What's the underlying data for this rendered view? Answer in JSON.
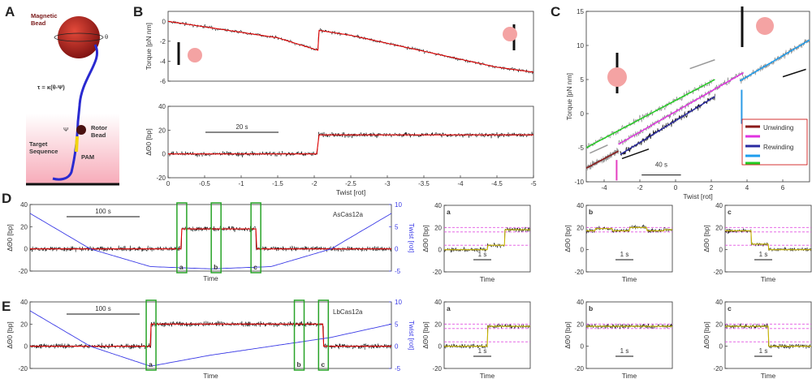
{
  "colors": {
    "trace": "#111111",
    "filtered": "#e00000",
    "twist_axis": "#3a3ae6",
    "box": "#27a327",
    "threshold": "#e255e2",
    "step_fit": "#c8b400",
    "unwinding": "#8b1a1a",
    "unwinding2": "#e033e0",
    "rewinding": "#2a2aa0",
    "rewinding2": "#1e9dee",
    "rewinding3": "#22cc22",
    "arrow_gray": "#999999",
    "arrow_magenta": "#e43fc0",
    "arrow_blue": "#2d9be6"
  },
  "panel_labels": [
    "A",
    "B",
    "C",
    "D",
    "E"
  ],
  "panelA": {
    "bead_label": "Magnetic\nBead",
    "theta": "θ",
    "tau_eq": "τ = κ(θ-Ψ)",
    "psi": "Ψ",
    "rotor_label": "Rotor\nBead",
    "target_label": "Target\nSequence",
    "pam_label": "PAM"
  },
  "chart_data": [
    {
      "id": "B-top",
      "type": "line",
      "ylabel": "Torque [pN nm]",
      "xlim": [
        0,
        -5
      ],
      "ylim": [
        -6,
        1
      ],
      "yticks": [
        0,
        -2,
        -4,
        -6
      ],
      "x": [
        0,
        -0.5,
        -1,
        -1.5,
        -2.05,
        -2.06,
        -2.5,
        -3,
        -3.5,
        -4,
        -4.5,
        -5
      ],
      "series": [
        {
          "values": [
            0,
            -0.55,
            -1.1,
            -1.65,
            -2.9,
            -0.9,
            -1.4,
            -2.2,
            -3.0,
            -3.8,
            -4.6,
            -5.1
          ]
        }
      ]
    },
    {
      "id": "B-bottom",
      "type": "line",
      "xlabel": "Twist [rot]",
      "ylabel": "ΔΘ0 [bp]",
      "xlim": [
        0,
        -5
      ],
      "ylim": [
        -20,
        40
      ],
      "xticks": [
        0,
        -0.5,
        -1,
        -1.5,
        -2,
        -2.5,
        -3,
        -3.5,
        -4,
        -4.5,
        -5
      ],
      "xticklabels": [
        "0",
        "-0.5",
        "-1",
        "-1.5",
        "-2",
        "-2.5",
        "-3",
        "-3.5",
        "-4",
        "-4.5",
        "-5"
      ],
      "yticks": [
        -20,
        0,
        20,
        40
      ],
      "scalebar": "20 s",
      "x": [
        0,
        -2.04,
        -2.06,
        -5
      ],
      "series": [
        {
          "values": [
            0,
            0,
            16,
            16
          ]
        }
      ]
    },
    {
      "id": "C",
      "type": "line",
      "xlabel": "Twist [rot]",
      "ylabel": "Torque [pN nm]",
      "xlim": [
        -5,
        7.5
      ],
      "ylim": [
        -10,
        15
      ],
      "xticks": [
        -4,
        -2,
        0,
        2,
        4,
        6
      ],
      "yticks": [
        -10,
        -5,
        0,
        5,
        10,
        15
      ],
      "scalebar": "40 s",
      "legend": {
        "position": "right",
        "entries": [
          "Unwinding",
          "Rewinding"
        ]
      },
      "series": [
        {
          "x": [
            -5,
            -3.2
          ],
          "values": [
            -8,
            -5.5
          ]
        },
        {
          "x": [
            -3.2,
            3.8
          ],
          "values": [
            -4.5,
            6
          ]
        },
        {
          "x": [
            -3.1,
            2.2
          ],
          "values": [
            -6,
            2.5
          ]
        },
        {
          "x": [
            3.6,
            7.5
          ],
          "values": [
            4.8,
            10.8
          ]
        },
        {
          "x": [
            -5,
            2.2
          ],
          "values": [
            -5,
            5
          ]
        }
      ]
    },
    {
      "id": "D-main",
      "type": "line",
      "xlabel": "Time",
      "ylabel": "ΔΘ0 [bp]",
      "y2label": "Twist [rot]",
      "ylim": [
        -20,
        40
      ],
      "y2lim": [
        -5,
        10
      ],
      "yticks": [
        -20,
        0,
        20,
        40
      ],
      "y2ticks": [
        -5,
        0,
        5,
        10
      ],
      "scalebar": "100 s",
      "annotation": "AsCas12a",
      "box_labels": [
        "a",
        "b",
        "c"
      ],
      "series": [
        {
          "name": "ΔΘ0",
          "values": [
            0,
            0,
            18,
            22,
            18,
            0,
            0
          ]
        },
        {
          "name": "Twist",
          "values": [
            8,
            0,
            -4,
            -4.5,
            -4,
            0,
            8
          ]
        }
      ]
    },
    {
      "id": "E-main",
      "type": "line",
      "xlabel": "Time",
      "ylabel": "ΔΘ0 [bp]",
      "y2label": "Twist [rot]",
      "ylim": [
        -20,
        40
      ],
      "y2lim": [
        -5,
        10
      ],
      "yticks": [
        -20,
        0,
        20,
        40
      ],
      "y2ticks": [
        -5,
        0,
        5,
        10
      ],
      "scalebar": "100 s",
      "annotation": "LbCas12a",
      "box_labels": [
        "a",
        "b",
        "c"
      ],
      "series": [
        {
          "name": "ΔΘ0",
          "values": [
            0,
            0,
            20,
            20,
            18,
            0,
            0
          ]
        },
        {
          "name": "Twist",
          "values": [
            8,
            0,
            -4.5,
            -2,
            0,
            2,
            5
          ]
        }
      ]
    },
    {
      "id": "D-a",
      "type": "line",
      "label": "a",
      "xlabel": "Time",
      "ylabel": "ΔΘ0 [bp]",
      "ylim": [
        -20,
        40
      ],
      "yticks": [
        -20,
        0,
        20,
        40
      ],
      "scalebar": "1 s",
      "thresholds": [
        4,
        16,
        20
      ],
      "series": [
        {
          "values": [
            0,
            0,
            0,
            4,
            18,
            18
          ]
        }
      ]
    },
    {
      "id": "D-b",
      "type": "line",
      "label": "b",
      "xlabel": "Time",
      "ylabel": "ΔΘ0 [bp]",
      "ylim": [
        -20,
        40
      ],
      "yticks": [
        -20,
        0,
        20,
        40
      ],
      "scalebar": "1 s",
      "thresholds": [
        16,
        20
      ],
      "series": [
        {
          "values": [
            17,
            19,
            17,
            20,
            17,
            18
          ]
        }
      ]
    },
    {
      "id": "D-c",
      "type": "line",
      "label": "c",
      "xlabel": "Time",
      "ylabel": "ΔΘ0 [bp]",
      "ylim": [
        -20,
        40
      ],
      "yticks": [
        -20,
        0,
        20,
        40
      ],
      "scalebar": "1 s",
      "thresholds": [
        4,
        16,
        20
      ],
      "series": [
        {
          "values": [
            17,
            17,
            5,
            0,
            0,
            0
          ]
        }
      ]
    },
    {
      "id": "E-a",
      "type": "line",
      "label": "a",
      "xlabel": "Time",
      "ylabel": "ΔΘ0 [bp]",
      "ylim": [
        -20,
        40
      ],
      "yticks": [
        -20,
        0,
        20,
        40
      ],
      "scalebar": "1 s",
      "thresholds": [
        4,
        16,
        20
      ],
      "series": [
        {
          "values": [
            0,
            0,
            0,
            18,
            18,
            18
          ]
        }
      ]
    },
    {
      "id": "E-b",
      "type": "line",
      "label": "b",
      "xlabel": "Time",
      "ylabel": "ΔΘ0 [bp]",
      "ylim": [
        -20,
        40
      ],
      "yticks": [
        -20,
        0,
        20,
        40
      ],
      "scalebar": "1 s",
      "thresholds": [
        16,
        20
      ],
      "series": [
        {
          "values": [
            18,
            18,
            18,
            18,
            18,
            18
          ]
        }
      ]
    },
    {
      "id": "E-c",
      "type": "line",
      "label": "c",
      "xlabel": "Time",
      "ylabel": "ΔΘ0 [bp]",
      "ylim": [
        -20,
        40
      ],
      "yticks": [
        -20,
        0,
        20,
        40
      ],
      "scalebar": "1 s",
      "thresholds": [
        4,
        16,
        20
      ],
      "series": [
        {
          "values": [
            18,
            18,
            18,
            0,
            0,
            0
          ]
        }
      ]
    }
  ]
}
